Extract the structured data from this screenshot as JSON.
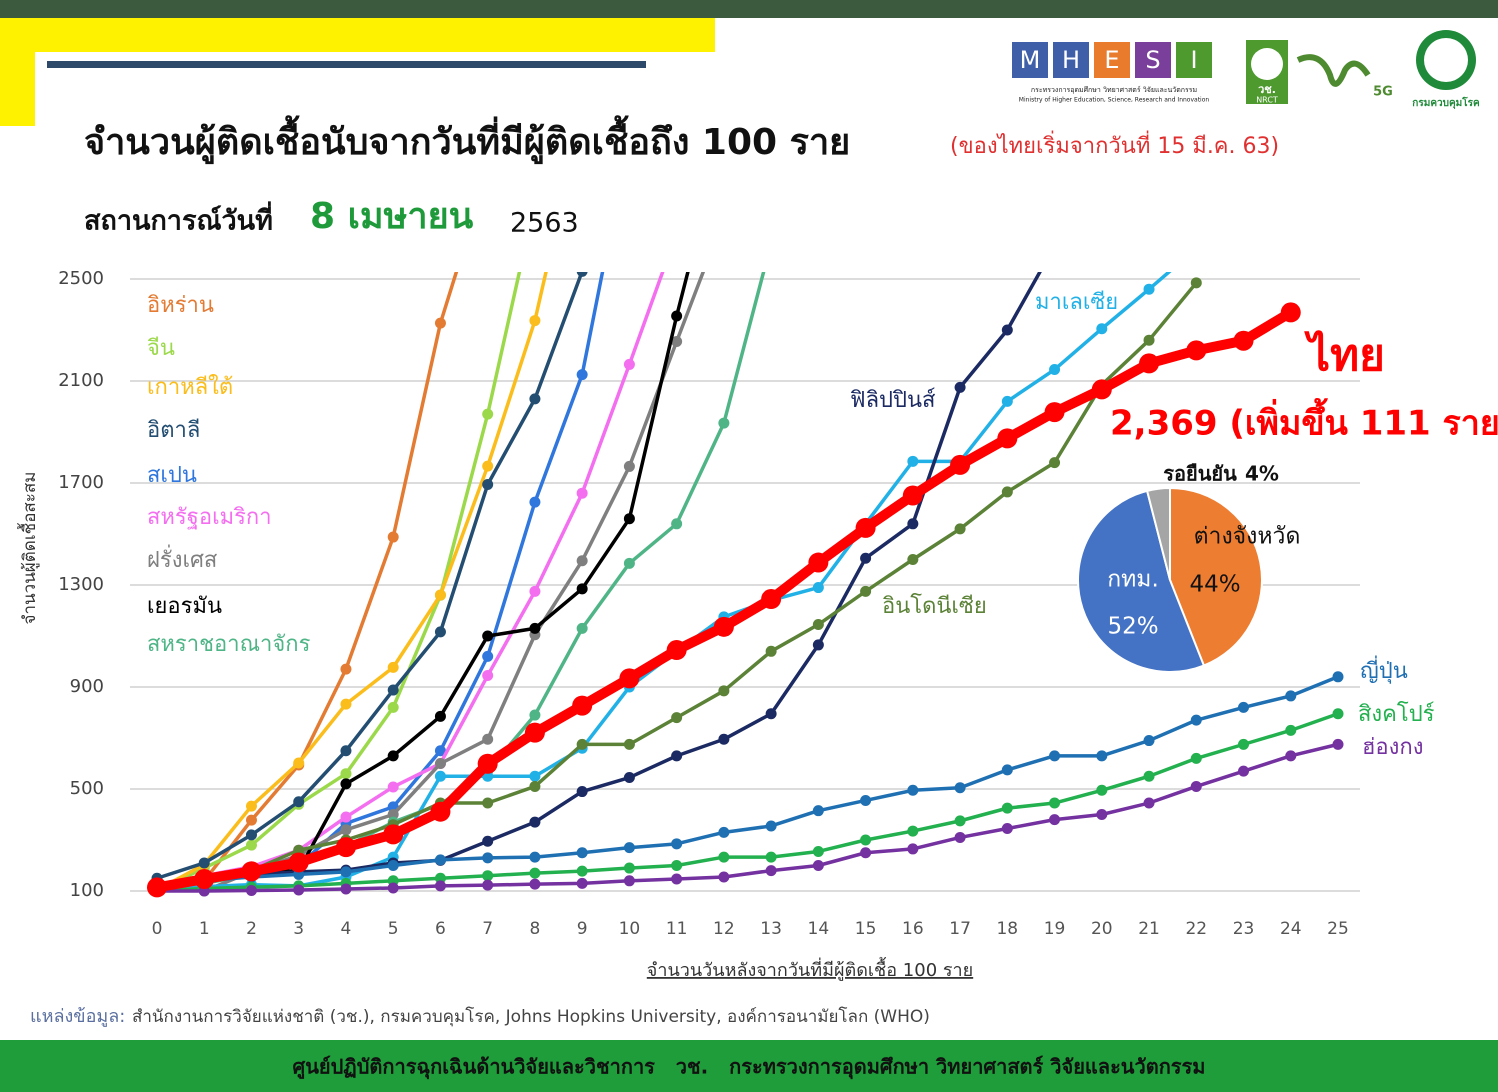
{
  "header": {
    "logo_letters": [
      "M",
      "H",
      "E",
      "S",
      "I"
    ],
    "ministry_th": "กระทรวงการอุดมศึกษา วิทยาศาสตร์ วิจัยและนวัตกรรม",
    "ministry_en": "Ministry of Higher Education, Science, Research and Innovation",
    "nrct_th": "วช.",
    "nrct_en": "NRCT",
    "fiveg": "5G",
    "ddc": "กรมควบคุมโรค",
    "title": "จำนวนผู้ติดเชื้อนับจากวันที่มีผู้ติดเชื้อถึง 100 ราย",
    "title_note": "(ของไทยเริ่มจากวันที่ 15 มี.ค. 63)",
    "status_prefix": "สถานการณ์วันที่",
    "status_date": "8 เมษายน",
    "status_year": "2563"
  },
  "chart_data": [
    {
      "type": "line",
      "y_label": "จำนวนผู้ติดเชื้อสะสม",
      "x_label": "จำนวนวันหลังจากวันที่มีผู้ติดเชื้อ 100 ราย",
      "annotation": "2,369 (เพิ่มขึ้น 111 ราย)",
      "x": [
        0,
        1,
        2,
        3,
        4,
        5,
        6,
        7,
        8,
        9,
        10,
        11,
        12,
        13,
        14,
        15,
        16,
        17,
        18,
        19,
        20,
        21,
        22,
        23,
        24,
        25
      ],
      "xlim": [
        0,
        25
      ],
      "xticks": [
        0,
        1,
        2,
        3,
        4,
        5,
        6,
        7,
        8,
        9,
        10,
        11,
        12,
        13,
        14,
        15,
        16,
        17,
        18,
        19,
        20,
        21,
        22,
        23,
        24,
        25
      ],
      "ylim": [
        100,
        2500
      ],
      "yticks": [
        100,
        500,
        900,
        1300,
        1700,
        2100,
        2500
      ],
      "grid": true,
      "series": [
        {
          "name": "อิหร่าน",
          "color": "#e37b33",
          "values": [
            100,
            140,
            378,
            594,
            970,
            1488,
            2327,
            2922,
            null,
            null,
            null,
            null,
            null,
            null,
            null,
            null,
            null,
            null,
            null,
            null,
            null,
            null,
            null,
            null,
            null,
            null
          ]
        },
        {
          "name": "จีน",
          "color": "#9bd94a",
          "values": [
            100,
            190,
            280,
            440,
            560,
            820,
            1260,
            1970,
            2800,
            null,
            null,
            null,
            null,
            null,
            null,
            null,
            null,
            null,
            null,
            null,
            null,
            null,
            null,
            null,
            null,
            null
          ]
        },
        {
          "name": "เกาหลีใต้",
          "color": "#fbbd1b",
          "values": [
            104,
            204,
            433,
            602,
            833,
            977,
            1261,
            1766,
            2337,
            3150,
            null,
            null,
            null,
            null,
            null,
            null,
            null,
            null,
            null,
            null,
            null,
            null,
            null,
            null,
            null,
            null
          ]
        },
        {
          "name": "อิตาลี",
          "color": "#234e72",
          "values": [
            150,
            210,
            320,
            450,
            650,
            888,
            1116,
            1694,
            2030,
            2530,
            null,
            null,
            null,
            null,
            null,
            null,
            null,
            null,
            null,
            null,
            null,
            null,
            null,
            null,
            null,
            null
          ]
        },
        {
          "name": "สเปน",
          "color": "#2f76dd",
          "values": [
            120,
            140,
            165,
            200,
            365,
            430,
            650,
            1020,
            1625,
            2125,
            3060,
            null,
            null,
            null,
            null,
            null,
            null,
            null,
            null,
            null,
            null,
            null,
            null,
            null,
            null,
            null
          ]
        },
        {
          "name": "สหรัฐอเมริกา",
          "color": "#f46ef0",
          "values": [
            120,
            160,
            195,
            260,
            390,
            508,
            600,
            945,
            1275,
            1660,
            2165,
            2680,
            null,
            null,
            null,
            null,
            null,
            null,
            null,
            null,
            null,
            null,
            null,
            null,
            null,
            null
          ]
        },
        {
          "name": "ฝรั่งเศส",
          "color": "#7f7f7f",
          "values": [
            125,
            100,
            175,
            240,
            340,
            400,
            600,
            695,
            1105,
            1395,
            1765,
            2255,
            2740,
            null,
            null,
            null,
            null,
            null,
            null,
            null,
            null,
            null,
            null,
            null,
            null,
            null
          ]
        },
        {
          "name": "เยอรมัน",
          "color": "#000000",
          "values": [
            112,
            145,
            170,
            180,
            520,
            630,
            785,
            1100,
            1130,
            1285,
            1560,
            2355,
            3080,
            null,
            null,
            null,
            null,
            null,
            null,
            null,
            null,
            null,
            null,
            null,
            null,
            null
          ]
        },
        {
          "name": "สหราชอาณาจักร",
          "color": "#4fb587",
          "values": [
            100,
            130,
            165,
            210,
            275,
            370,
            440,
            570,
            790,
            1130,
            1385,
            1540,
            1935,
            2640,
            null,
            null,
            null,
            null,
            null,
            null,
            null,
            null,
            null,
            null,
            null,
            null
          ]
        },
        {
          "name": "มาเลเซีย",
          "color": "#21b1e6",
          "values": [
            125,
            117,
            125,
            120,
            155,
            233,
            550,
            550,
            550,
            660,
            900,
            1040,
            1175,
            1240,
            1290,
            1540,
            1785,
            1785,
            2020,
            2145,
            2305,
            2460,
            2620,
            null,
            null,
            null
          ]
        },
        {
          "name": "ฟิลิปปินส์",
          "color": "#1b2a63",
          "values": [
            100,
            140,
            165,
            175,
            182,
            210,
            220,
            295,
            370,
            490,
            545,
            630,
            695,
            795,
            1065,
            1405,
            1540,
            2075,
            2300,
            2630,
            null,
            null,
            null,
            null,
            null,
            null
          ]
        },
        {
          "name": "อินโดนีเซีย",
          "color": "#5b8236",
          "values": [
            117,
            150,
            180,
            260,
            300,
            360,
            445,
            445,
            510,
            675,
            675,
            780,
            885,
            1040,
            1145,
            1275,
            1400,
            1520,
            1665,
            1780,
            2085,
            2260,
            2485,
            null,
            null,
            null
          ]
        },
        {
          "name": "ญี่ปุ่น",
          "color": "#1f70b3",
          "values": [
            125,
            140,
            155,
            165,
            175,
            200,
            222,
            230,
            233,
            250,
            270,
            285,
            330,
            355,
            415,
            455,
            495,
            505,
            575,
            630,
            630,
            690,
            770,
            820,
            865,
            940
          ]
        },
        {
          "name": "สิงคโปร์",
          "color": "#23b04e",
          "values": [
            100,
            110,
            115,
            120,
            130,
            140,
            150,
            160,
            170,
            178,
            190,
            200,
            233,
            233,
            255,
            300,
            335,
            375,
            425,
            445,
            495,
            550,
            620,
            675,
            730,
            795
          ]
        },
        {
          "name": "ฮ่องกง",
          "color": "#7431a0",
          "values": [
            100,
            100,
            102,
            104,
            108,
            112,
            120,
            123,
            127,
            130,
            140,
            147,
            155,
            180,
            200,
            250,
            265,
            310,
            345,
            380,
            400,
            445,
            510,
            570,
            630,
            675
          ]
        },
        {
          "name": "ไทย",
          "color": "#ff0000",
          "values": [
            114,
            147,
            177,
            212,
            272,
            322,
            411,
            599,
            721,
            827,
            934,
            1045,
            1136,
            1245,
            1388,
            1524,
            1651,
            1771,
            1875,
            1978,
            2067,
            2169,
            2220,
            2258,
            2369,
            null
          ]
        }
      ]
    },
    {
      "type": "pie",
      "categories": [
        "ต่างจังหวัด",
        "กทม.",
        "รอยืนยัน"
      ],
      "values": [
        44,
        52,
        4
      ],
      "value_labels": [
        "44%",
        "52%",
        "4%"
      ],
      "colors": [
        "#ed7d31",
        "#4472c4",
        "#a5a5a5"
      ]
    }
  ],
  "source": {
    "label": "แหล่งข้อมูล:",
    "text": "สำนักงานการวิจัยแห่งชาติ (วช.), กรมควบคุมโรค, Johns Hopkins University, องค์การอนามัยโลก (WHO)"
  },
  "footer": "ศูนย์ปฏิบัติการฉุกเฉินด้านวิจัยและวิชาการ   วช.   กระทรวงการอุดมศึกษา วิทยาศาสตร์ วิจัยและนวัตกรรม"
}
